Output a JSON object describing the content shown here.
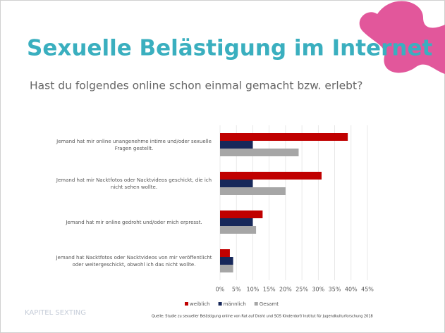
{
  "header": {
    "title": "Sexuelle Belästigung im Internet",
    "subtitle": "Hast du folgendes online schon einmal gemacht bzw. erlebt?"
  },
  "footer": {
    "chapter": "KAPITEL SEXTING",
    "source": "Quelle: Studie zu sexueller Belästigung online von Rat auf Draht und SOS Kinderdorf/ Institut für Jugendkulturforschung 2018"
  },
  "chart_data": {
    "type": "hbar",
    "categories": [
      "Jemand hat mir online unangenehme intime und/oder sexuelle Fragen gestellt.",
      "Jemand hat mir Nacktfotos oder Nacktvideos geschickt, die ich nicht sehen wollte.",
      "Jemand hat mir online gedroht und/oder mich erpresst.",
      "Jemand hat Nacktfotos oder Nacktvideos von mir veröffentlicht oder weitergeschickt,  obwohl ich das nicht wollte."
    ],
    "series": [
      {
        "name": "weiblich",
        "color": "#c00000",
        "values": [
          39,
          31,
          13,
          3
        ]
      },
      {
        "name": "männlich",
        "color": "#17285a",
        "values": [
          10,
          10,
          10,
          4
        ]
      },
      {
        "name": "Gesamt",
        "color": "#a6a6a6",
        "values": [
          24,
          20,
          11,
          4
        ]
      }
    ],
    "xlim": [
      0,
      45
    ],
    "xticks": [
      {
        "value": 0,
        "label": "0%"
      },
      {
        "value": 5,
        "label": "5%"
      },
      {
        "value": 10,
        "label": "10%"
      },
      {
        "value": 15,
        "label": "15%"
      },
      {
        "value": 20,
        "label": "20%"
      },
      {
        "value": 25,
        "label": "25%"
      },
      {
        "value": 30,
        "label": "30%"
      },
      {
        "value": 35,
        "label": "35%"
      },
      {
        "value": 40,
        "label": "40%"
      },
      {
        "value": 45,
        "label": "45%"
      }
    ],
    "grid": true,
    "legend": "bottom"
  }
}
